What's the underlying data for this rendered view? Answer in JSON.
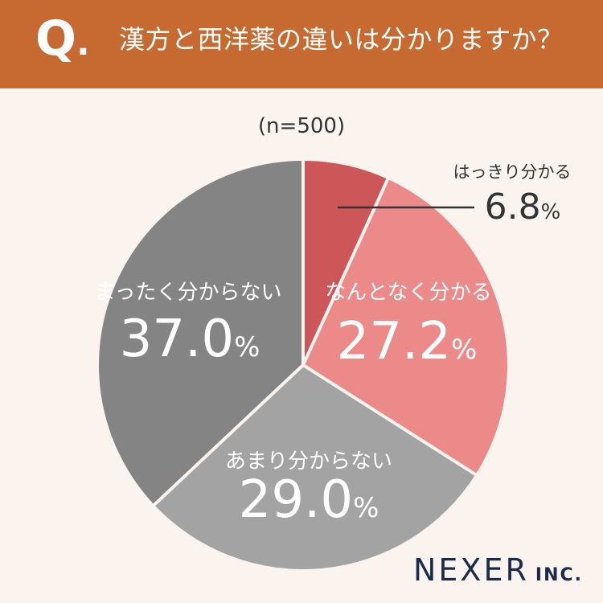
{
  "header": {
    "q_label": "Q",
    "q_dot": ".",
    "question": "漢方と西洋薬の違いは分かりますか？"
  },
  "sample_size": "(n=500)",
  "chart_data": {
    "type": "pie",
    "start": "12 o'clock",
    "direction": "clockwise",
    "percent_suffix": "%",
    "slices": [
      {
        "label": "はっきり分かる",
        "value": 6.8,
        "value_text": "6.8",
        "color": "#CC5658",
        "label_placement": "outside-top-right"
      },
      {
        "label": "なんとなく分かる",
        "value": 27.2,
        "value_text": "27.2",
        "color": "#EC8A8A",
        "label_placement": "inside"
      },
      {
        "label": "あまり分からない",
        "value": 29.0,
        "value_text": "29.0",
        "color": "#A3A3A3",
        "label_placement": "inside"
      },
      {
        "label": "まったく分からない",
        "value": 37.0,
        "value_text": "37.0",
        "color": "#848484",
        "label_placement": "inside"
      }
    ],
    "colors": {
      "separator": "#FBF3EE",
      "inside_text": "#FFFFFF",
      "outside_text": "#333333",
      "leader_line": "#333333"
    }
  },
  "logo": {
    "main": "NEXER",
    "sub": "INC."
  }
}
